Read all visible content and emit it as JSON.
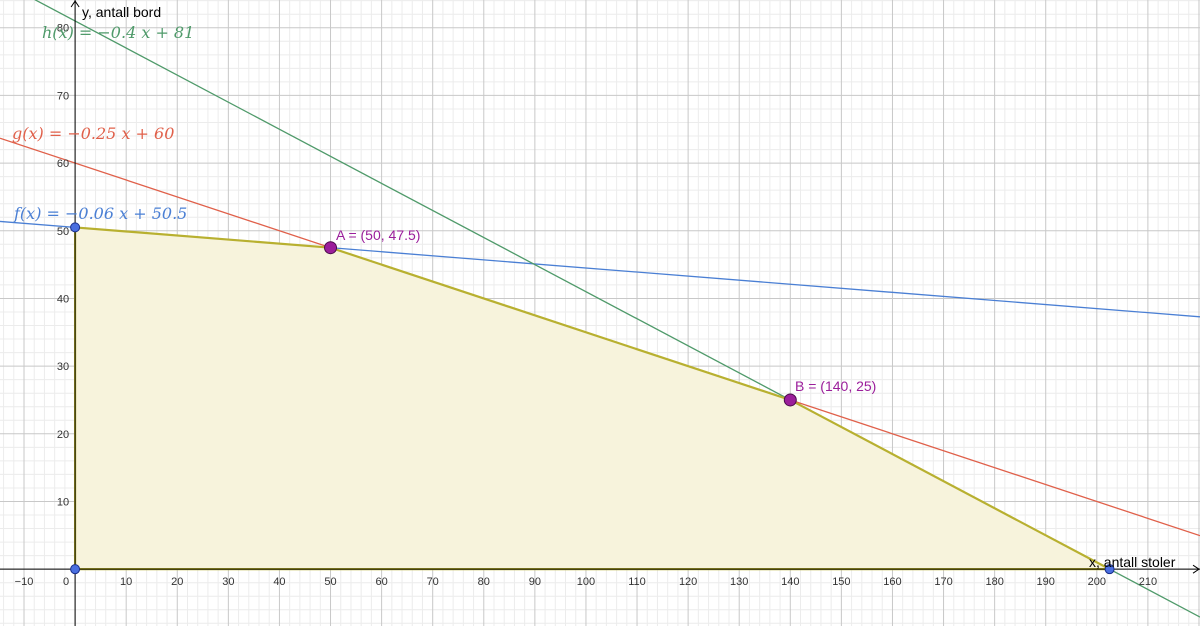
{
  "chart_data": {
    "type": "line",
    "title": "",
    "xlabel": "x, antall stoler",
    "ylabel": "y, antall bord",
    "xlim": [
      -14.7,
      220.2
    ],
    "ylim": [
      -8.4,
      84.1
    ],
    "grid": true,
    "x_ticks": [
      -10,
      0,
      10,
      20,
      30,
      40,
      50,
      60,
      70,
      80,
      90,
      100,
      110,
      120,
      130,
      140,
      150,
      160,
      170,
      180,
      190,
      200,
      210
    ],
    "y_ticks": [
      10,
      20,
      30,
      40,
      50,
      60,
      70,
      80
    ],
    "tick_labels_x": [
      "−10",
      "0",
      "10",
      "20",
      "30",
      "40",
      "50",
      "60",
      "70",
      "80",
      "90",
      "100",
      "110",
      "120",
      "130",
      "140",
      "150",
      "160",
      "170",
      "180",
      "190",
      "200",
      "210"
    ],
    "tick_labels_y": [
      "10",
      "20",
      "30",
      "40",
      "50",
      "60",
      "70",
      "80"
    ],
    "series": [
      {
        "name": "f",
        "slope": -0.06,
        "intercept": 50.5,
        "color": "#4a7fd4",
        "label": "f(x)  =  −0.06 x + 50.5"
      },
      {
        "name": "g",
        "slope": -0.25,
        "intercept": 60,
        "color": "#e0604a",
        "label": "g(x)  =  −0.25 x + 60"
      },
      {
        "name": "h",
        "slope": -0.4,
        "intercept": 81,
        "color": "#4f9a6a",
        "label": "h(x)  =  −0.4 x + 81"
      }
    ],
    "feasible_region": {
      "vertices": [
        [
          0,
          0
        ],
        [
          0,
          50.5
        ],
        [
          50,
          47.5
        ],
        [
          140,
          25
        ],
        [
          202.5,
          0
        ]
      ],
      "fill": "#f7f3dc",
      "stroke": "#b8b030"
    },
    "points": [
      {
        "name": "A",
        "x": 50,
        "y": 47.5,
        "label": "A = (50, 47.5)",
        "color": "#9b1e9b",
        "emphasis": true
      },
      {
        "name": "B",
        "x": 140,
        "y": 25,
        "label": "B = (140, 25)",
        "color": "#9b1e9b",
        "emphasis": true
      },
      {
        "x": 0,
        "y": 50.5,
        "color": "#4a6fe0"
      },
      {
        "x": 0,
        "y": 0,
        "color": "#4a6fe0"
      },
      {
        "x": 202.5,
        "y": 0,
        "color": "#4a6fe0"
      }
    ]
  }
}
